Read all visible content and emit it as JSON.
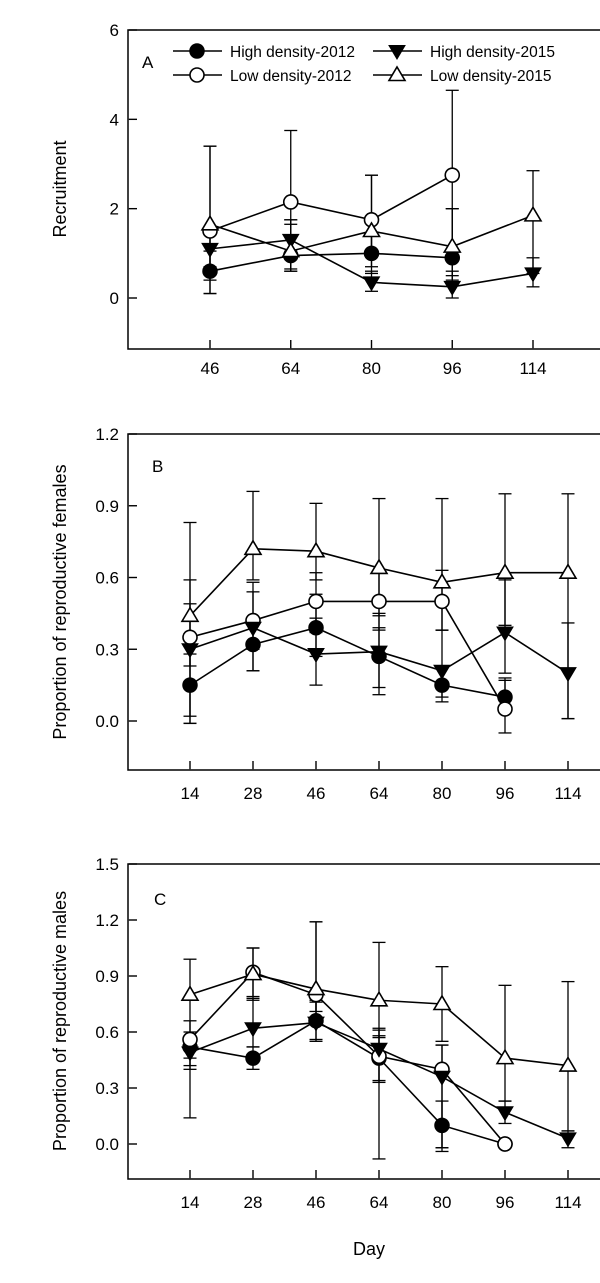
{
  "figure": {
    "background_color": "#ffffff",
    "line_color": "#000000",
    "xlabel": "Day"
  },
  "legend": {
    "items": [
      {
        "label": "High density-2012",
        "marker": "circle-filled"
      },
      {
        "label": "Low density-2012",
        "marker": "circle-open"
      },
      {
        "label": "High density-2015",
        "marker": "triangle-down-filled"
      },
      {
        "label": "Low density-2015",
        "marker": "triangle-up-open"
      }
    ]
  },
  "chart_data": [
    {
      "type": "line",
      "panel_label": "A",
      "ylabel": "Recruitment",
      "xlabel": "",
      "categories": [
        46,
        64,
        80,
        96,
        114
      ],
      "yticks": [
        0,
        2,
        4,
        6
      ],
      "ytick_labels": [
        "0",
        "2",
        "4",
        "6"
      ],
      "ylim": [
        -1.15,
        6
      ],
      "grid": false,
      "legend_position": "top-inside",
      "series": [
        {
          "name": "High density-2012",
          "marker": "circle-filled",
          "values": [
            0.6,
            0.95,
            1.0,
            0.9,
            null
          ],
          "err_up": [
            0.45,
            0.7,
            0.45,
            1.1,
            null
          ],
          "err_down": [
            0.5,
            0.35,
            0.3,
            0.5,
            null
          ]
        },
        {
          "name": "Low density-2012",
          "marker": "circle-open",
          "values": [
            1.5,
            2.15,
            1.75,
            2.75,
            null
          ],
          "err_up": [
            1.9,
            1.6,
            1.0,
            1.9,
            null
          ],
          "err_down": [
            1.4,
            1.1,
            0.7,
            1.65,
            null
          ]
        },
        {
          "name": "High density-2015",
          "marker": "triangle-down-filled",
          "values": [
            1.1,
            1.3,
            0.35,
            0.25,
            0.55
          ],
          "err_up": [
            0.4,
            0.45,
            0.25,
            0.35,
            0.35
          ],
          "err_down": [
            0.4,
            0.65,
            0.2,
            0.25,
            0.3
          ]
        },
        {
          "name": "Low density-2015",
          "marker": "triangle-up-open",
          "values": [
            1.65,
            1.05,
            1.5,
            1.15,
            1.85
          ],
          "err_up": [
            1.75,
            0.7,
            1.25,
            0.85,
            1.0
          ],
          "err_down": [
            1.25,
            0.45,
            0.95,
            0.65,
            1.3
          ]
        }
      ]
    },
    {
      "type": "line",
      "panel_label": "B",
      "ylabel": "Proportion of reproductive females",
      "xlabel": "",
      "categories": [
        14,
        28,
        46,
        64,
        80,
        96,
        114
      ],
      "yticks": [
        0.0,
        0.3,
        0.6,
        0.9,
        1.2
      ],
      "ytick_labels": [
        "0.0",
        "0.3",
        "0.6",
        "0.9",
        "1.2"
      ],
      "ylim": [
        -0.21,
        1.2
      ],
      "grid": false,
      "series": [
        {
          "name": "High density-2012",
          "marker": "circle-filled",
          "values": [
            0.15,
            0.32,
            0.39,
            0.27,
            0.15,
            0.1,
            null
          ],
          "err_up": [
            0.13,
            0.1,
            0.14,
            0.12,
            0.07,
            0.08,
            null
          ],
          "err_down": [
            0.13,
            0.11,
            0.12,
            0.13,
            0.07,
            0.05,
            null
          ]
        },
        {
          "name": "Low density-2012",
          "marker": "circle-open",
          "values": [
            0.35,
            0.42,
            0.5,
            0.5,
            0.5,
            0.05,
            null
          ],
          "err_up": [
            0.14,
            0.12,
            0.12,
            0.12,
            0.13,
            0.12,
            null
          ],
          "err_down": [
            0.12,
            0.12,
            0.13,
            0.12,
            0.12,
            0.1,
            null
          ]
        },
        {
          "name": "High density-2015",
          "marker": "triangle-down-filled",
          "values": [
            0.3,
            0.39,
            0.28,
            0.29,
            0.21,
            0.37,
            0.2
          ],
          "err_up": [
            0.29,
            0.19,
            0.15,
            0.16,
            0.17,
            0.22,
            0.21
          ],
          "err_down": [
            0.31,
            0.18,
            0.13,
            0.18,
            0.11,
            0.17,
            0.19
          ]
        },
        {
          "name": "Low density-2015",
          "marker": "triangle-up-open",
          "values": [
            0.44,
            0.72,
            0.71,
            0.64,
            0.58,
            0.62,
            0.62
          ],
          "err_up": [
            0.39,
            0.24,
            0.2,
            0.29,
            0.35,
            0.33,
            0.33
          ],
          "err_down": [
            0.45,
            0.13,
            0.12,
            0.2,
            0.2,
            0.22,
            0.61
          ]
        }
      ]
    },
    {
      "type": "line",
      "panel_label": "C",
      "ylabel": "Proportion of reproductive males",
      "xlabel": "Day",
      "categories": [
        14,
        28,
        46,
        64,
        80,
        96,
        114
      ],
      "yticks": [
        0.0,
        0.3,
        0.6,
        0.9,
        1.2,
        1.5
      ],
      "ytick_labels": [
        "0.0",
        "0.3",
        "0.6",
        "0.9",
        "1.2",
        "1.5"
      ],
      "ylim": [
        -0.18,
        1.5
      ],
      "grid": false,
      "series": [
        {
          "name": "High density-2012",
          "marker": "circle-filled",
          "values": [
            0.52,
            0.46,
            0.66,
            0.46,
            0.1,
            0.0,
            null
          ],
          "err_up": [
            0.08,
            0.06,
            0.1,
            0.12,
            0.13,
            null,
            null
          ],
          "err_down": [
            0.1,
            0.06,
            0.1,
            0.12,
            0.12,
            null,
            null
          ]
        },
        {
          "name": "Low density-2012",
          "marker": "circle-open",
          "values": [
            0.56,
            0.92,
            0.8,
            0.47,
            0.4,
            0.0,
            null
          ],
          "err_up": [
            0.1,
            0.13,
            0.39,
            0.14,
            0.13,
            null,
            null
          ],
          "err_down": [
            0.1,
            0.13,
            0.12,
            0.55,
            0.42,
            null,
            null
          ]
        },
        {
          "name": "High density-2015",
          "marker": "triangle-down-filled",
          "values": [
            0.49,
            0.62,
            0.65,
            0.51,
            0.36,
            0.17,
            0.03
          ],
          "err_up": [
            0.09,
            0.16,
            0.12,
            0.11,
            0.17,
            0.06,
            0.04
          ],
          "err_down": [
            0.09,
            0.1,
            0.1,
            0.18,
            0.4,
            0.06,
            0.05
          ]
        },
        {
          "name": "Low density-2015",
          "marker": "triangle-up-open",
          "values": [
            0.8,
            0.91,
            0.83,
            0.77,
            0.75,
            0.46,
            0.42
          ],
          "err_up": [
            0.19,
            0.14,
            0.36,
            0.31,
            0.2,
            0.39,
            0.45
          ],
          "err_down": [
            0.66,
            0.14,
            0.12,
            0.2,
            0.2,
            0.23,
            0.35
          ]
        }
      ]
    }
  ]
}
